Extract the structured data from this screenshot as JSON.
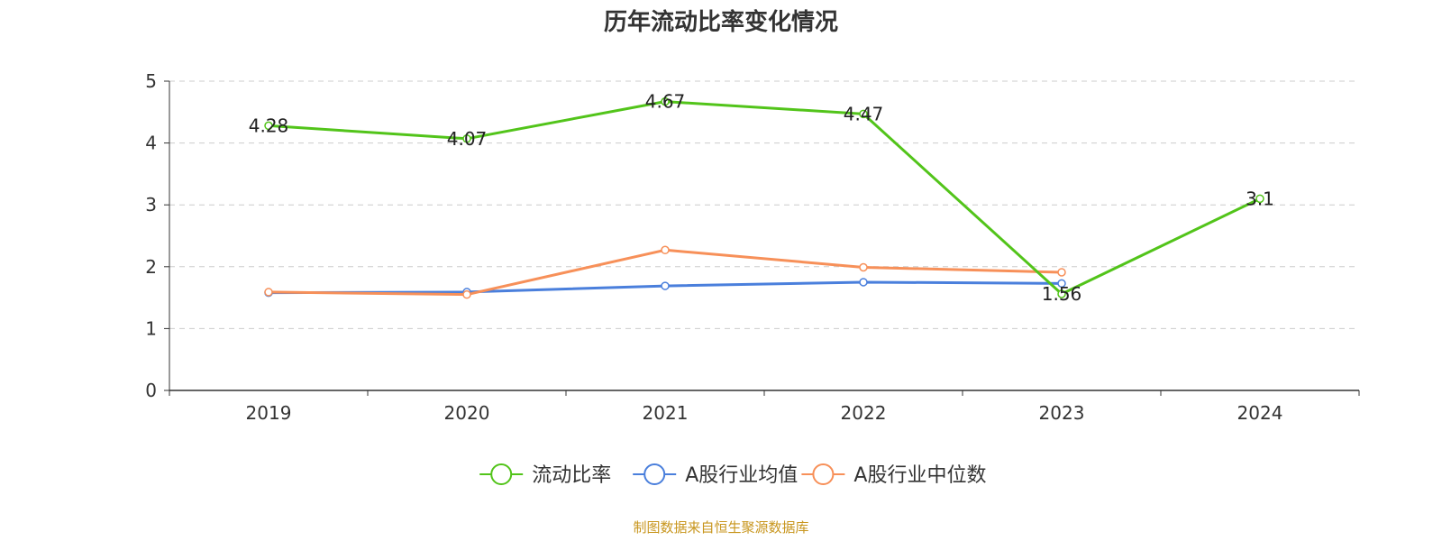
{
  "chart_data": {
    "type": "line",
    "title": "历年流动比率变化情况",
    "categories": [
      "2019",
      "2020",
      "2021",
      "2022",
      "2023",
      "2024"
    ],
    "ylim": [
      0,
      5
    ],
    "yticks": [
      "0",
      "1",
      "2",
      "3",
      "4",
      "5"
    ],
    "grid": true,
    "legend_position": "bottom",
    "series": [
      {
        "name": "流动比率",
        "color": "#52c41a",
        "values": [
          4.28,
          4.07,
          4.67,
          4.47,
          1.56,
          3.1
        ],
        "labels": [
          "4.28",
          "4.07",
          "4.67",
          "4.47",
          "1.56",
          "3.1"
        ]
      },
      {
        "name": "A股行业均值",
        "color": "#4a7fdc",
        "values": [
          1.58,
          1.59,
          1.69,
          1.75,
          1.73,
          null
        ]
      },
      {
        "name": "A股行业中位数",
        "color": "#f79059",
        "values": [
          1.59,
          1.55,
          2.27,
          1.99,
          1.91,
          null
        ]
      }
    ]
  },
  "source": "制图数据来自恒生聚源数据库"
}
